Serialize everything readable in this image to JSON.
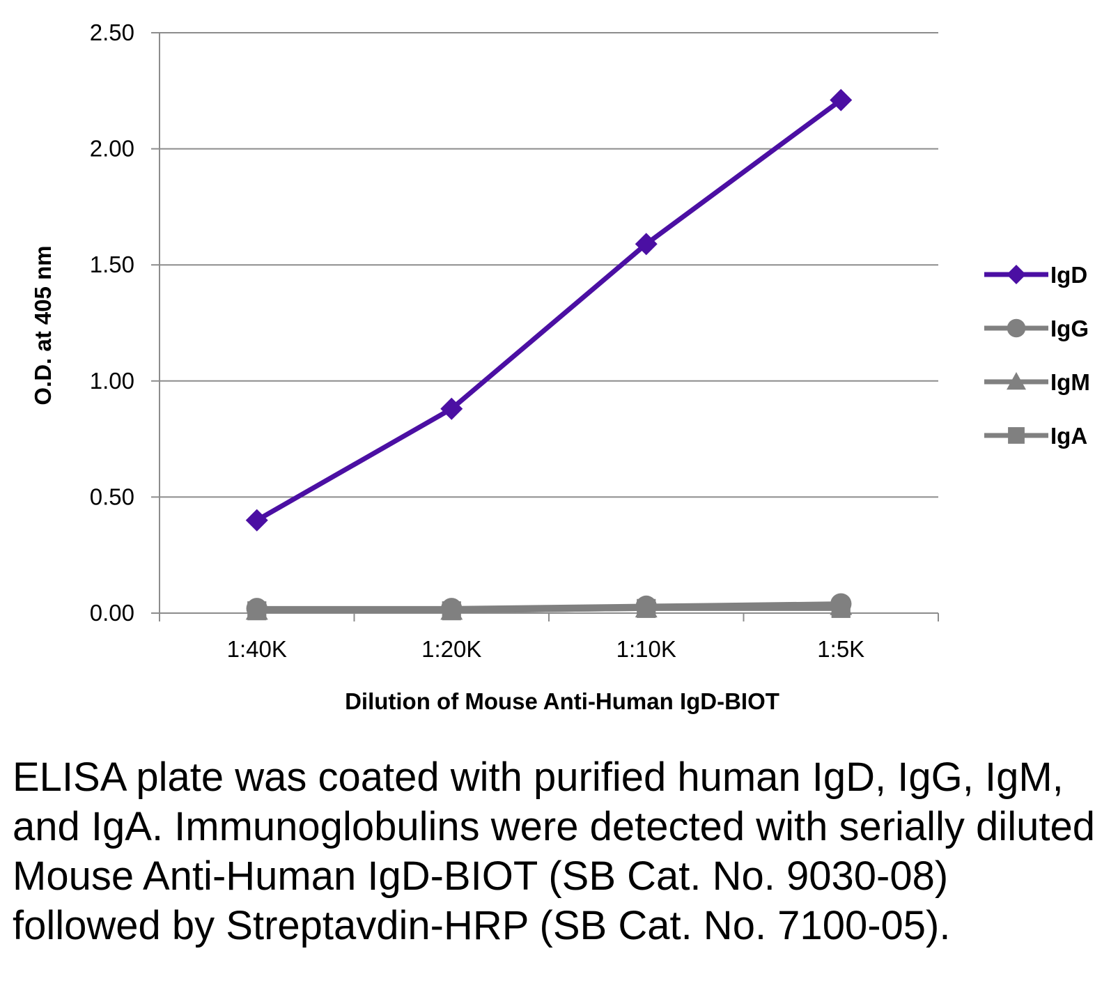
{
  "chart_data": {
    "type": "line",
    "title": "",
    "xlabel": "Dilution of Mouse Anti-Human IgD-BIOT",
    "ylabel": "O.D. at 405 nm",
    "categories": [
      "1:40K",
      "1:20K",
      "1:10K",
      "1:5K"
    ],
    "ylim": [
      0,
      2.5
    ],
    "yticks": [
      "0.00",
      "0.50",
      "1.00",
      "1.50",
      "2.00",
      "2.50"
    ],
    "grid": "horizontal",
    "legend_position": "right",
    "series": [
      {
        "name": "IgD",
        "marker": "diamond",
        "color": "#4B0FA3",
        "values": [
          0.4,
          0.88,
          1.59,
          2.21
        ]
      },
      {
        "name": "IgG",
        "marker": "circle",
        "color": "#808080",
        "values": [
          0.02,
          0.02,
          0.03,
          0.04
        ]
      },
      {
        "name": "IgM",
        "marker": "triangle",
        "color": "#808080",
        "values": [
          0.01,
          0.01,
          0.02,
          0.03
        ]
      },
      {
        "name": "IgA",
        "marker": "square",
        "color": "#808080",
        "values": [
          0.01,
          0.01,
          0.02,
          0.02
        ]
      }
    ]
  },
  "caption": "ELISA plate was coated with purified human IgD, IgG, IgM, and IgA.  Immunoglobulins were detected with serially diluted Mouse Anti-Human IgD-BIOT (SB Cat. No. 9030-08) followed by Streptavdin-HRP (SB Cat. No. 7100-05)."
}
